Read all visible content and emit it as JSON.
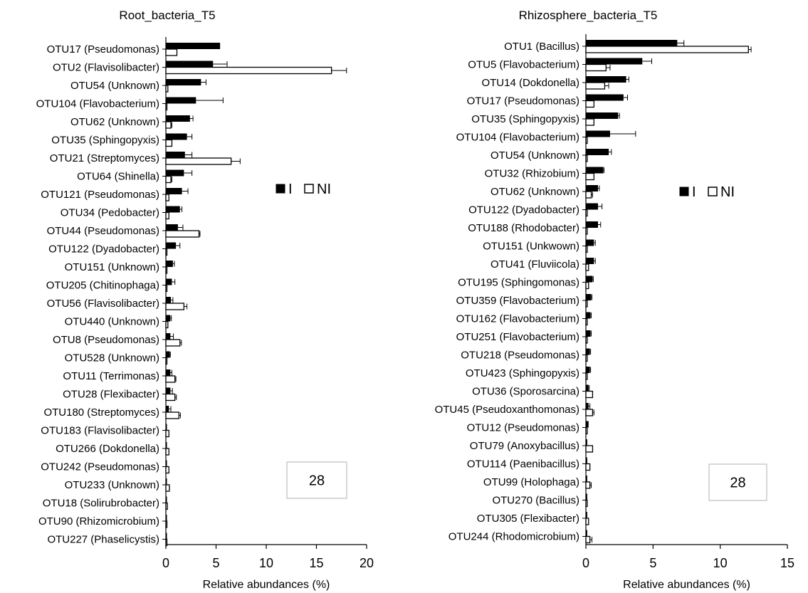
{
  "chart_data": [
    {
      "type": "bar",
      "orientation": "horizontal",
      "title": "Root_bacteria_T5",
      "xlabel": "Relative abundances (%)",
      "ylabel": "",
      "xlim": [
        0,
        20
      ],
      "xticks": [
        0,
        5,
        10,
        15,
        20
      ],
      "grid": false,
      "legend_position": "right-middle",
      "box_label": "28",
      "categories": [
        "OTU17 (Pseudomonas)",
        "OTU2 (Flavisolibacter)",
        "OTU54 (Unknown)",
        "OTU104 (Flavobacterium)",
        "OTU62 (Unknown)",
        "OTU35 (Sphingopyxis)",
        "OTU21 (Streptomyces)",
        "OTU64 (Shinella)",
        "OTU121 (Pseudomonas)",
        "OTU34 (Pedobacter)",
        "OTU44 (Pseudomonas)",
        "OTU122 (Dyadobacter)",
        "OTU151 (Unknown)",
        "OTU205 (Chitinophaga)",
        "OTU56 (Flavisolibacter)",
        "OTU440 (Unknown)",
        "OTU8 (Pseudomonas)",
        "OTU528 (Unknown)",
        "OTU11 (Terrimonas)",
        "OTU28 (Flexibacter)",
        "OTU180 (Streptomyces)",
        "OTU183 (Flavisolibacter)",
        "OTU266 (Dokdonella)",
        "OTU242 (Pseudomonas)",
        "OTU233 (Unknown)",
        "OTU18 (Solirubrobacter)",
        "OTU90 (Rhizomicrobium)",
        "OTU227 (Phaselicystis)"
      ],
      "series": [
        {
          "name": "I",
          "color": "#000000",
          "values": [
            5.4,
            4.7,
            3.5,
            3.0,
            2.4,
            2.1,
            1.9,
            1.8,
            1.6,
            1.4,
            1.2,
            1.0,
            0.7,
            0.6,
            0.5,
            0.45,
            0.45,
            0.4,
            0.45,
            0.45,
            0.3,
            0.1,
            0.1,
            0.1,
            0.1,
            0.1,
            0.1,
            0.1
          ],
          "errors": [
            0.0,
            1.4,
            0.5,
            2.7,
            0.3,
            0.5,
            0.7,
            0.8,
            0.6,
            0.2,
            0.5,
            0.4,
            0.15,
            0.3,
            0.2,
            0.1,
            0.3,
            0.05,
            0.15,
            0.2,
            0.2,
            0.0,
            0.0,
            0.0,
            0.0,
            0.0,
            0.0,
            0.0
          ]
        },
        {
          "name": "NI",
          "color": "#ffffff",
          "values": [
            1.1,
            16.5,
            0.2,
            0.1,
            0.5,
            0.6,
            6.5,
            0.5,
            0.3,
            0.3,
            3.3,
            0.1,
            0.1,
            0.1,
            1.8,
            0.2,
            1.4,
            0.1,
            0.9,
            0.9,
            1.3,
            0.3,
            0.3,
            0.3,
            0.35,
            0.15,
            0.1,
            0.1
          ],
          "errors": [
            0.0,
            1.5,
            0.0,
            0.0,
            0.1,
            0.0,
            0.9,
            0.1,
            0.0,
            0.0,
            0.1,
            0.0,
            0.0,
            0.0,
            0.3,
            0.0,
            0.15,
            0.0,
            0.1,
            0.15,
            0.15,
            0.0,
            0.0,
            0.0,
            0.0,
            0.0,
            0.0,
            0.0
          ]
        }
      ]
    },
    {
      "type": "bar",
      "orientation": "horizontal",
      "title": "Rhizosphere_bacteria_T5",
      "xlabel": "Relative abundances (%)",
      "ylabel": "",
      "xlim": [
        0,
        15
      ],
      "xticks": [
        0,
        5,
        10,
        15
      ],
      "grid": false,
      "legend_position": "right-middle",
      "box_label": "28",
      "categories": [
        "OTU1 (Bacillus)",
        "OTU5 (Flavobacterium)",
        "OTU14 (Dokdonella)",
        "OTU17 (Pseudomonas)",
        "OTU35 (Sphingopyxis)",
        "OTU104 (Flavobacterium)",
        "OTU54 (Unknown)",
        "OTU32 (Rhizobium)",
        "OTU62 (Unknown)",
        "OTU122 (Dyadobacter)",
        "OTU188 (Rhodobacter)",
        "OTU151 (Unkwown)",
        "OTU41 (Fluviicola)",
        "OTU195 (Sphingomonas)",
        "OTU359 (Flavobacterium)",
        "OTU162 (Flavobacterium)",
        "OTU251 (Flavobacterium)",
        "OTU218 (Pseudomonas)",
        "OTU423 (Sphingopyxis)",
        "OTU36 (Sporosarcina)",
        "OTU45 (Pseudoxanthomonas)",
        "OTU12 (Pseudomonas)",
        "OTU79 (Anoxybacillus)",
        "OTU114 (Paenibacillus)",
        "OTU99 (Holophaga)",
        "OTU270 (Bacillus)",
        "OTU305 (Flexibacter)",
        "OTU244 (Rhodomicrobium)"
      ],
      "series": [
        {
          "name": "I",
          "color": "#000000",
          "values": [
            6.8,
            4.2,
            3.0,
            2.8,
            2.4,
            1.8,
            1.7,
            1.3,
            0.9,
            0.9,
            0.9,
            0.6,
            0.6,
            0.5,
            0.4,
            0.35,
            0.35,
            0.3,
            0.3,
            0.2,
            0.2,
            0.2,
            0.1,
            0.1,
            0.1,
            0.1,
            0.1,
            0.1
          ],
          "errors": [
            0.5,
            0.7,
            0.2,
            0.3,
            0.1,
            1.9,
            0.2,
            0.05,
            0.1,
            0.3,
            0.2,
            0.1,
            0.1,
            0.05,
            0.05,
            0.05,
            0.05,
            0.05,
            0.05,
            0.05,
            0.1,
            0.0,
            0.0,
            0.0,
            0.0,
            0.0,
            0.0,
            0.0
          ]
        },
        {
          "name": "NI",
          "color": "#ffffff",
          "values": [
            12.1,
            1.5,
            1.4,
            0.6,
            0.6,
            0.1,
            0.1,
            0.6,
            0.4,
            0.1,
            0.1,
            0.1,
            0.2,
            0.2,
            0.1,
            0.1,
            0.1,
            0.1,
            0.1,
            0.5,
            0.5,
            0.1,
            0.5,
            0.3,
            0.3,
            0.1,
            0.2,
            0.3
          ],
          "errors": [
            0.2,
            0.3,
            0.3,
            0.0,
            0.0,
            0.0,
            0.0,
            0.0,
            0.1,
            0.0,
            0.0,
            0.0,
            0.0,
            0.0,
            0.0,
            0.0,
            0.0,
            0.0,
            0.0,
            0.0,
            0.1,
            0.0,
            0.0,
            0.0,
            0.1,
            0.0,
            0.0,
            0.15
          ]
        }
      ]
    }
  ]
}
